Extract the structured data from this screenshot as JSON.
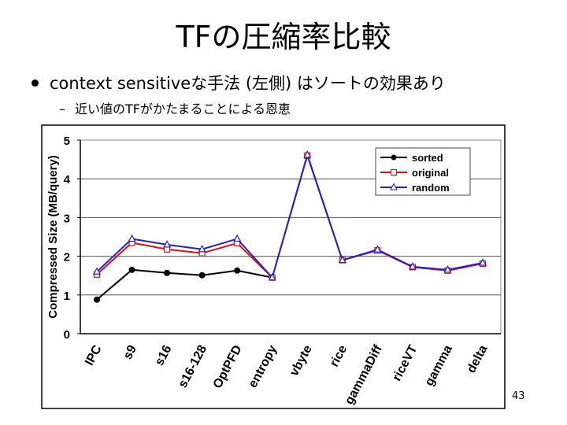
{
  "slide": {
    "title": "TFの圧縮率比較",
    "bullet": "context sensitiveな手法 (左側) はソートの効果あり",
    "sub_bullet": "近い値のTFがかたまることによる恩恵",
    "sub_dash": "–",
    "page_number": "43"
  },
  "colors": {
    "sorted": "#000000",
    "original": "#dd1111",
    "random": "#2222cc",
    "grid": "#555555"
  },
  "chart_data": {
    "type": "line",
    "title": "",
    "xlabel": "",
    "ylabel": "Compressed Size (MB/query)",
    "ylim": [
      0,
      5
    ],
    "yticks": [
      "0",
      "1",
      "2",
      "3",
      "4",
      "5"
    ],
    "grid": true,
    "legend_position": "top-right",
    "categories": [
      "IPC",
      "s9",
      "s16",
      "s16-128",
      "OptPFD",
      "entropy",
      "vbyte",
      "rice",
      "gammaDiff",
      "riceVT",
      "gamma",
      "delta"
    ],
    "series": [
      {
        "name": "sorted",
        "marker": "circle",
        "values": [
          0.88,
          1.65,
          1.57,
          1.51,
          1.63,
          1.45,
          null,
          null,
          null,
          null,
          null,
          null
        ]
      },
      {
        "name": "original",
        "marker": "square",
        "values": [
          1.53,
          2.35,
          2.18,
          2.08,
          2.34,
          1.45,
          4.6,
          1.9,
          2.15,
          1.72,
          1.63,
          1.81
        ]
      },
      {
        "name": "random",
        "marker": "triangle",
        "values": [
          1.6,
          2.45,
          2.3,
          2.18,
          2.45,
          1.45,
          4.62,
          1.9,
          2.17,
          1.73,
          1.65,
          1.83
        ]
      }
    ]
  }
}
